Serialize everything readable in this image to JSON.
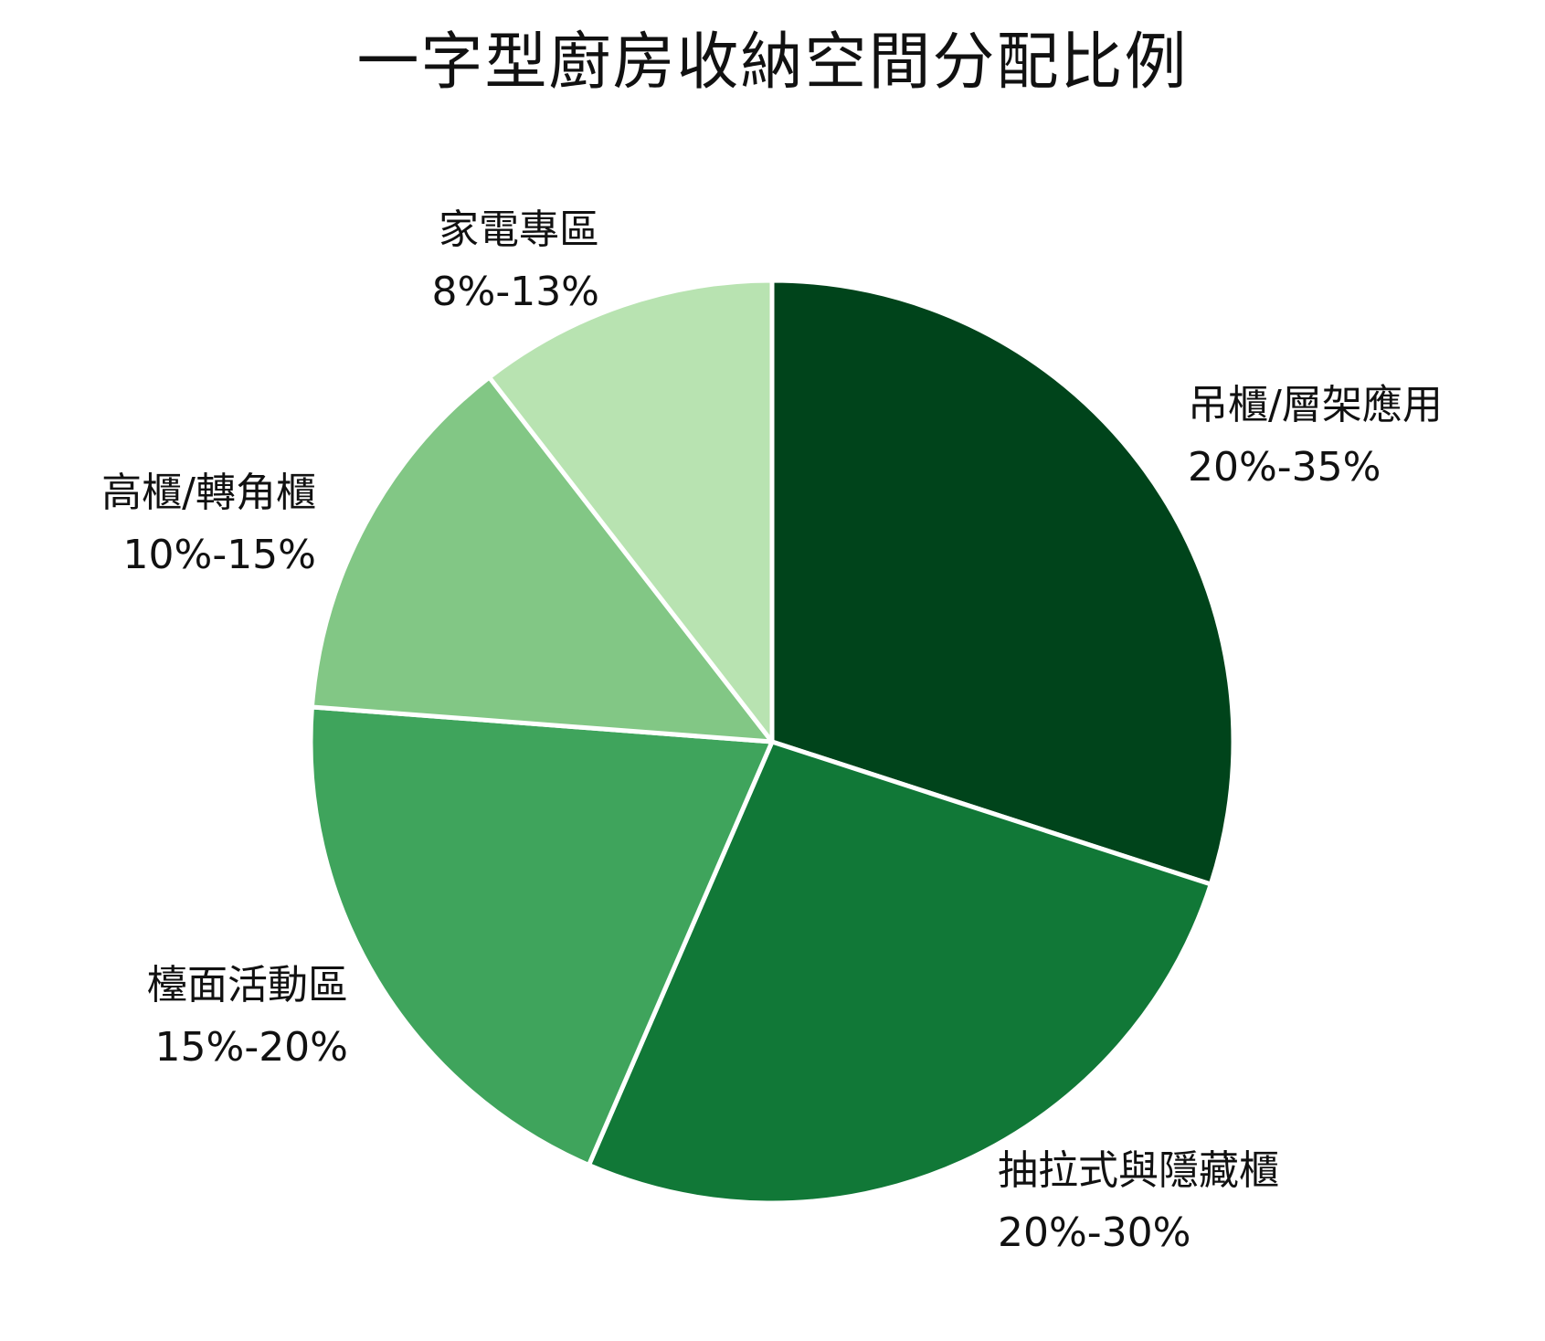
{
  "chart_data": {
    "type": "pie",
    "title": "一字型廚房收納空間分配比例",
    "slices": [
      {
        "name": "吊櫃/層架應用",
        "range": "20%-35%",
        "value": 0.3,
        "color": "#00441b"
      },
      {
        "name": "抽拉式與隱藏櫃",
        "range": "20%-30%",
        "value": 0.265,
        "color": "#117837"
      },
      {
        "name": "檯面活動區",
        "range": "15%-20%",
        "value": 0.197,
        "color": "#3fa45c"
      },
      {
        "name": "高櫃/轉角櫃",
        "range": "10%-15%",
        "value": 0.133,
        "color": "#82c785"
      },
      {
        "name": "家電專區",
        "range": "8%-13%",
        "value": 0.105,
        "color": "#b8e3b1"
      }
    ],
    "start_angle": "12 o'clock",
    "direction": "clockwise",
    "legend": "none"
  }
}
